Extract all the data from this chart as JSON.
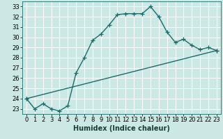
{
  "title": "",
  "xlabel": "Humidex (Indice chaleur)",
  "ylabel": "",
  "bg_color": "#cce8e4",
  "line_color": "#1a6b6b",
  "grid_color": "#ffffff",
  "xlim": [
    -0.5,
    23.5
  ],
  "ylim": [
    22.5,
    33.5
  ],
  "xticks": [
    0,
    1,
    2,
    3,
    4,
    5,
    6,
    7,
    8,
    9,
    10,
    11,
    12,
    13,
    14,
    15,
    16,
    17,
    18,
    19,
    20,
    21,
    22,
    23
  ],
  "yticks": [
    23,
    24,
    25,
    26,
    27,
    28,
    29,
    30,
    31,
    32,
    33
  ],
  "curve1_x": [
    0,
    1,
    2,
    3,
    4,
    5,
    6,
    7,
    8,
    9,
    10,
    11,
    12,
    13,
    14,
    15,
    16,
    17,
    18,
    19,
    20,
    21,
    22,
    23
  ],
  "curve1_y": [
    24.0,
    23.0,
    23.5,
    23.0,
    22.8,
    23.3,
    26.5,
    28.0,
    29.7,
    30.3,
    31.2,
    32.2,
    32.3,
    32.3,
    32.3,
    33.0,
    32.0,
    30.5,
    29.5,
    29.8,
    29.2,
    28.8,
    29.0,
    28.7
  ],
  "curve2_x": [
    0,
    23
  ],
  "curve2_y": [
    24.0,
    28.7
  ],
  "marker": "+",
  "markersize": 4,
  "linewidth": 1.0,
  "xlabel_fontsize": 7,
  "tick_fontsize": 6
}
